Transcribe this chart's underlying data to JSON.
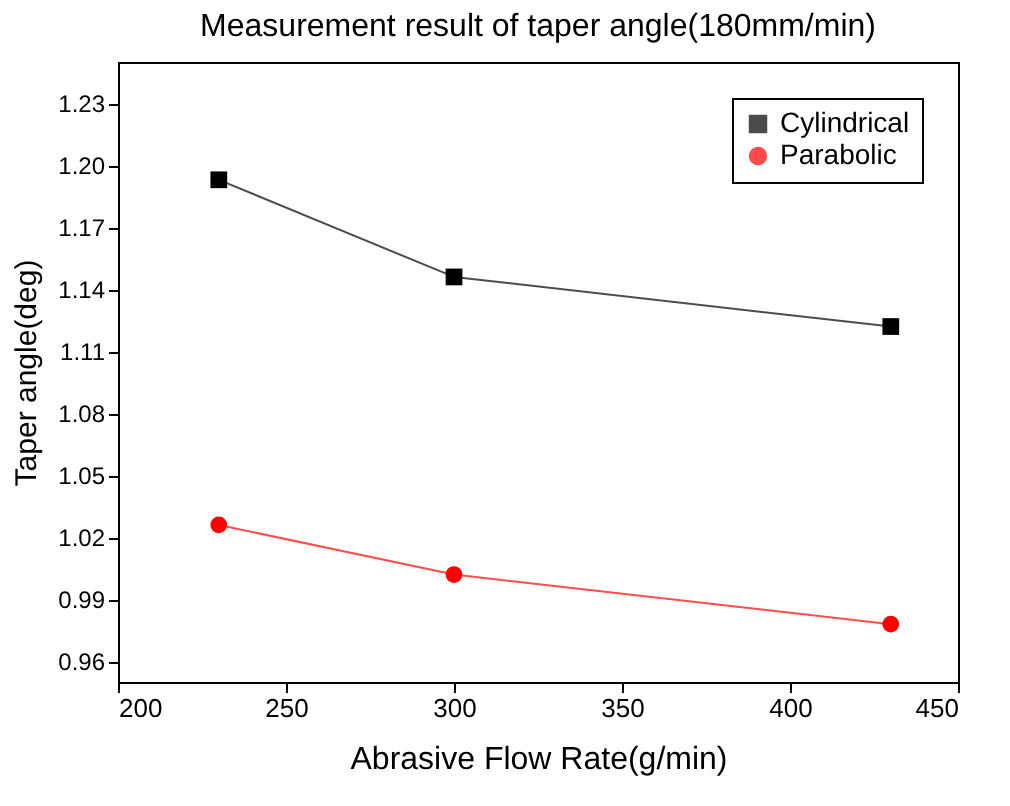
{
  "chart_data": {
    "type": "line",
    "title": "Measurement result of taper angle(180mm/min)",
    "xlabel": "Abrasive Flow Rate(g/min)",
    "ylabel": "Taper angle(deg)",
    "x": [
      230,
      300,
      430
    ],
    "series": [
      {
        "name": "Cylindrical",
        "color": "#000000",
        "marker": "square",
        "values": [
          1.193,
          1.146,
          1.122
        ]
      },
      {
        "name": "Parabolic",
        "color": "#ff0000",
        "marker": "circle",
        "values": [
          1.026,
          1.002,
          0.978
        ]
      }
    ],
    "xlim": [
      200,
      450
    ],
    "xticks": [
      200,
      250,
      300,
      350,
      400,
      450
    ],
    "ylim": [
      0.95,
      1.25
    ],
    "yticks": [
      0.96,
      0.99,
      1.02,
      1.05,
      1.08,
      1.11,
      1.14,
      1.17,
      {
        "value": 1.2,
        "label": "1.20"
      },
      1.23
    ],
    "grid": false,
    "legend": "top right",
    "line_style": "solid"
  }
}
